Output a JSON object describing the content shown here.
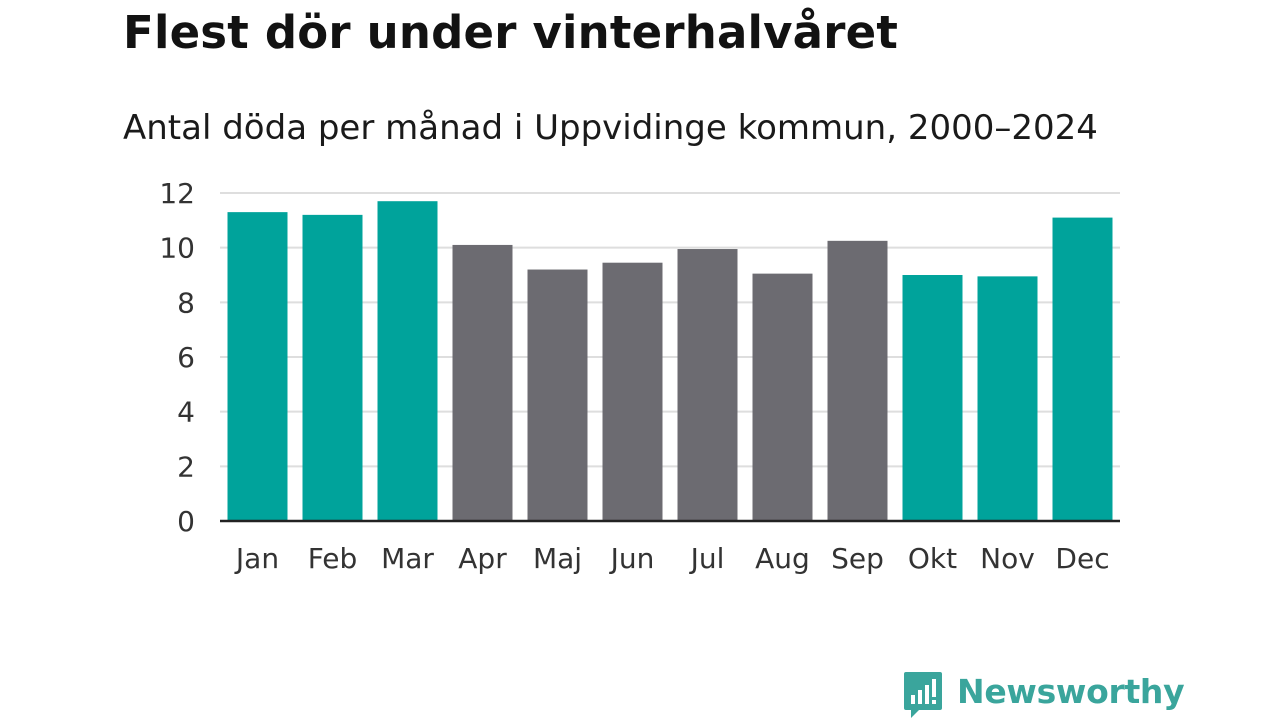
{
  "chart_data": {
    "type": "bar",
    "title": "Flest dör under vinterhalvåret",
    "subtitle": "Antal döda per månad i Uppvidinge kommun, 2000–2024",
    "categories": [
      "Jan",
      "Feb",
      "Mar",
      "Apr",
      "Maj",
      "Jun",
      "Jul",
      "Aug",
      "Sep",
      "Okt",
      "Nov",
      "Dec"
    ],
    "values": [
      11.3,
      11.2,
      11.7,
      10.1,
      9.2,
      9.45,
      9.95,
      9.05,
      10.25,
      9.0,
      8.95,
      11.1
    ],
    "highlight": [
      true,
      true,
      true,
      false,
      false,
      false,
      false,
      false,
      false,
      true,
      true,
      true
    ],
    "ylim": [
      0,
      12
    ],
    "yticks": [
      0,
      2,
      4,
      6,
      8,
      10,
      12
    ],
    "xlabel": "",
    "ylabel": "",
    "grid": true,
    "colors": {
      "highlight": "#00a39b",
      "default": "#6c6b71",
      "grid": "#dedede",
      "axis": "#222222"
    }
  },
  "brand": {
    "name": "Newsworthy",
    "icon": "newsworthy-chart-bubble-icon",
    "color": "#3aa59c"
  }
}
